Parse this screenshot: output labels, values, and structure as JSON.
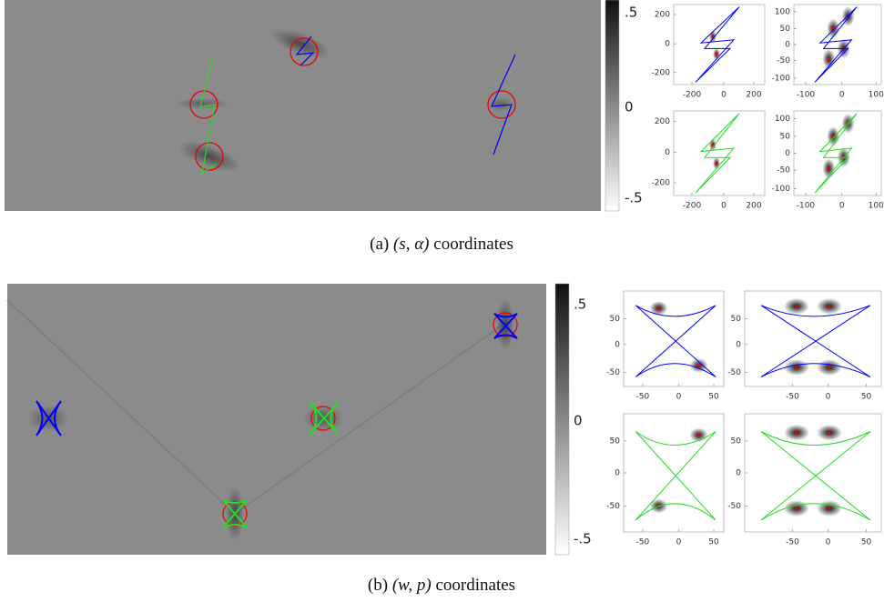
{
  "panels": [
    {
      "colorbar": {
        "ticks": [
          ".5",
          "0",
          "-.5"
        ]
      },
      "plots": [
        {
          "yticks": [
            "200",
            "0",
            "-200"
          ],
          "xticks": [
            "-200",
            "0",
            "200"
          ]
        },
        {
          "yticks": [
            "100",
            "50",
            "0",
            "-50",
            "-100"
          ],
          "xticks": [
            "-100",
            "0",
            "100"
          ]
        },
        {
          "yticks": [
            "200",
            "0",
            "-200"
          ],
          "xticks": [
            "-200",
            "0",
            "200"
          ]
        },
        {
          "yticks": [
            "100",
            "50",
            "0",
            "-50",
            "-100"
          ],
          "xticks": [
            "-100",
            "0",
            "100"
          ]
        }
      ],
      "caption": {
        "label": "(a)",
        "math": "(s, α)",
        "text": "coordinates"
      }
    },
    {
      "colorbar": {
        "ticks": [
          ".5",
          "0",
          "-.5"
        ]
      },
      "plots": [
        {
          "yticks": [
            "50",
            "0",
            "-50"
          ],
          "xticks": [
            "-50",
            "0",
            "50"
          ]
        },
        {
          "yticks": [
            "50",
            "0",
            "-50"
          ],
          "xticks": [
            "-50",
            "0",
            "50"
          ]
        },
        {
          "yticks": [
            "50",
            "0",
            "-50"
          ],
          "xticks": [
            "-50",
            "0",
            "50"
          ]
        },
        {
          "yticks": [
            "50",
            "0",
            "-50"
          ],
          "xticks": [
            "-50",
            "0",
            "50"
          ]
        }
      ],
      "caption": {
        "label": "(b)",
        "math": "(w, p)",
        "text": "coordinates"
      }
    }
  ]
}
